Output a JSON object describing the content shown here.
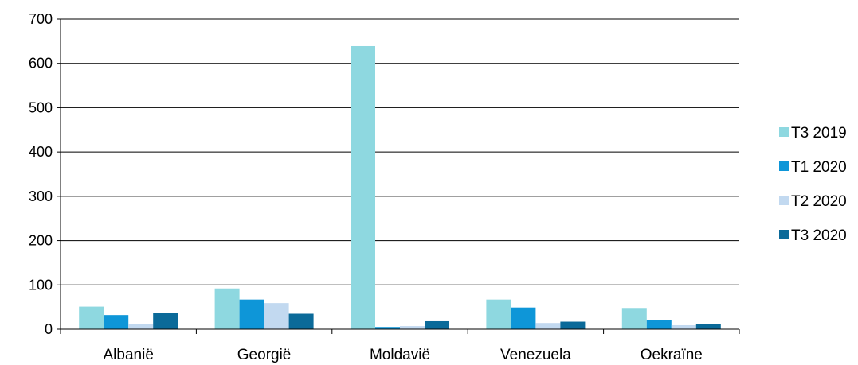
{
  "chart_data": {
    "type": "bar",
    "title": "",
    "xlabel": "",
    "ylabel": "",
    "categories": [
      "Albanië",
      "Georgië",
      "Moldavië",
      "Venezuela",
      "Oekraïne"
    ],
    "series": [
      {
        "name": "T3 2019",
        "color": "#8ED8E0",
        "values": [
          51,
          92,
          639,
          67,
          48
        ]
      },
      {
        "name": "T1 2020",
        "color": "#0E96D8",
        "values": [
          32,
          67,
          5,
          49,
          20
        ]
      },
      {
        "name": "T2 2020",
        "color": "#C2D9F0",
        "values": [
          11,
          59,
          7,
          14,
          9
        ]
      },
      {
        "name": "T3 2020",
        "color": "#0B6A99",
        "values": [
          37,
          35,
          18,
          17,
          12
        ]
      }
    ],
    "ylim": [
      0,
      700
    ],
    "yticks": [
      "0",
      "100",
      "200",
      "300",
      "400",
      "500",
      "600",
      "700"
    ],
    "grid": true,
    "legend_position": "right"
  }
}
